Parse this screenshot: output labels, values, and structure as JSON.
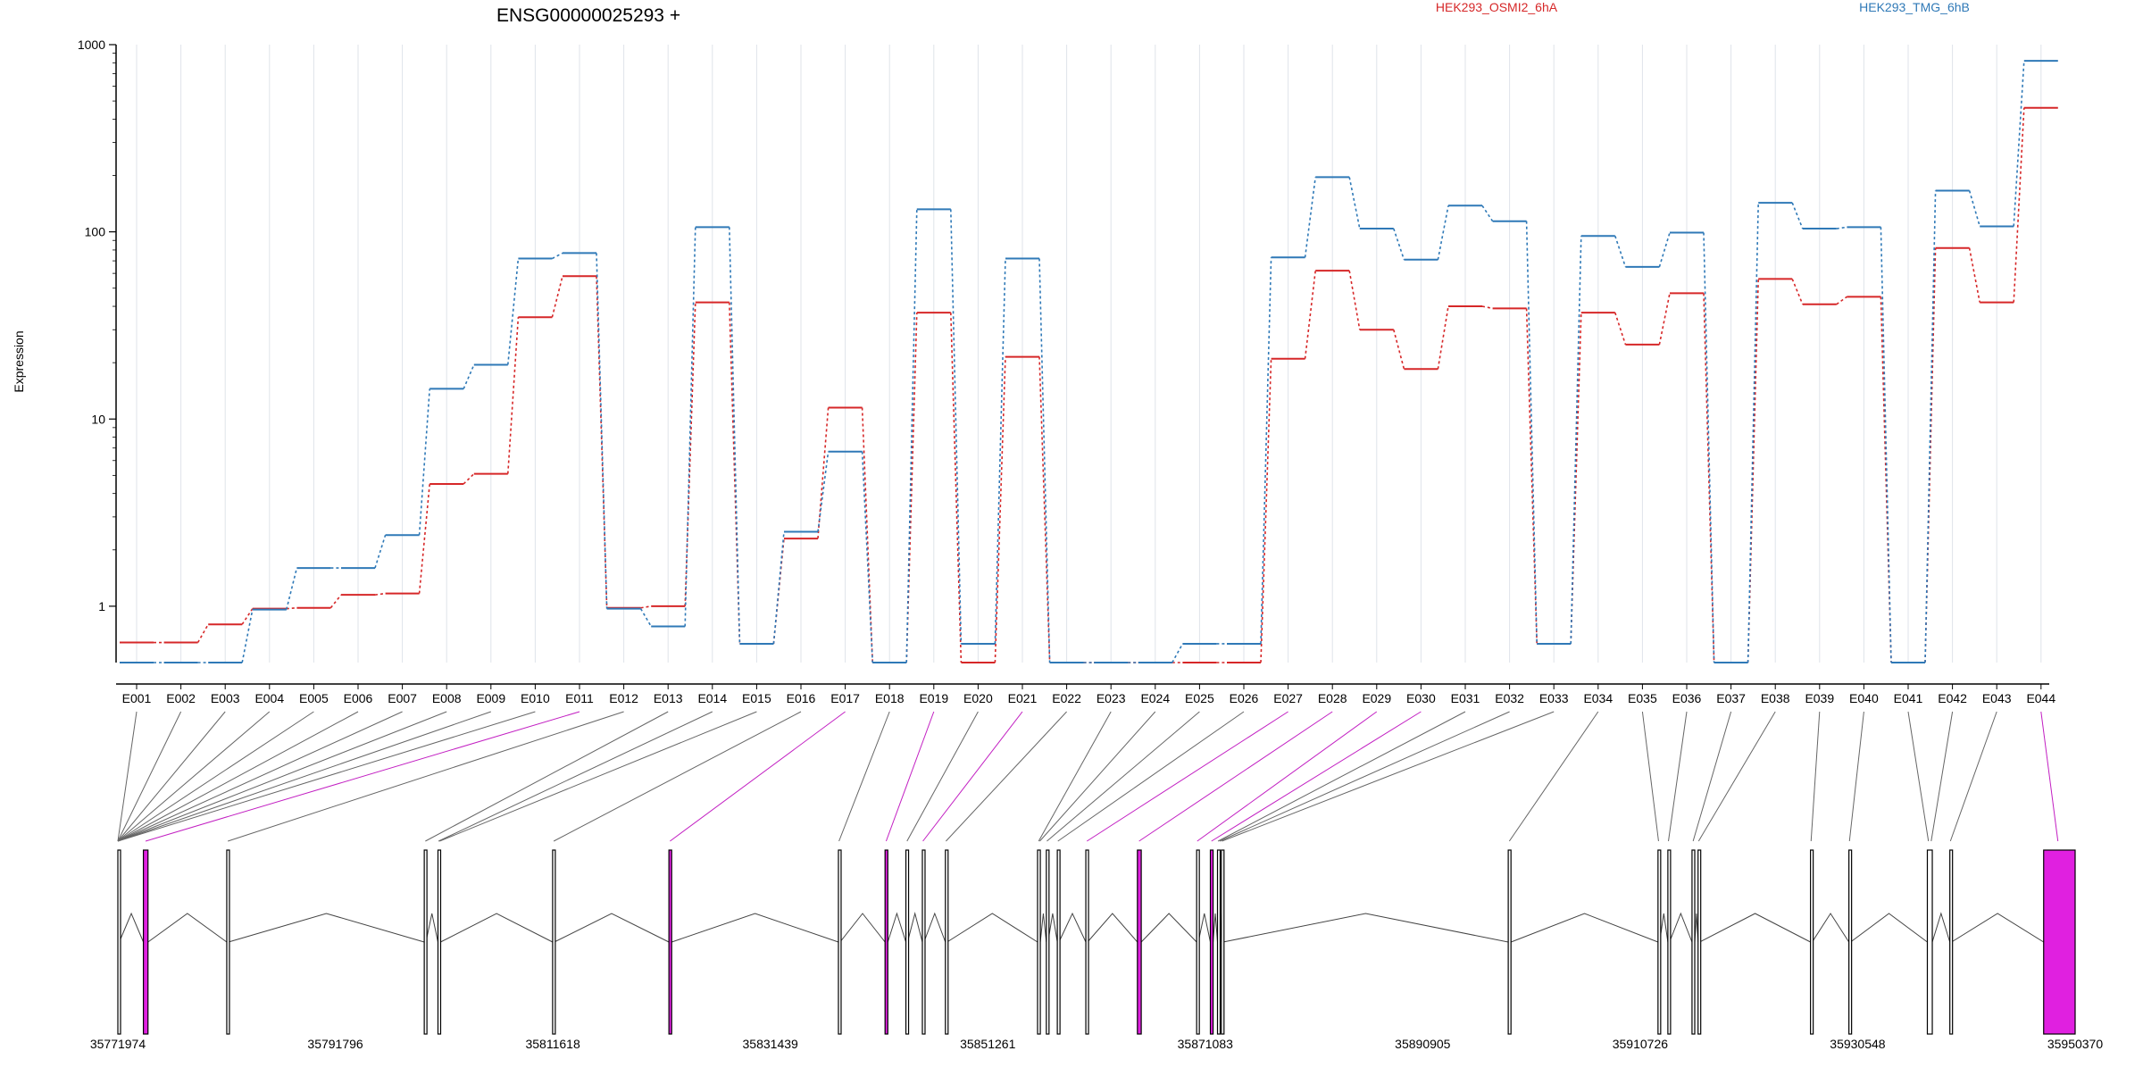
{
  "chart_data": {
    "type": "line",
    "title": "ENSG00000025293 +",
    "ylabel": "Expression",
    "yscale": "log",
    "ylim": [
      0.5,
      1000
    ],
    "yticks": [
      1,
      10,
      100,
      1000
    ],
    "yticklabels": [
      "1",
      "10",
      "100",
      "1000"
    ],
    "grid_x": true,
    "legend_placement": "top",
    "categories": [
      "E001",
      "E002",
      "E003",
      "E004",
      "E005",
      "E006",
      "E007",
      "E008",
      "E009",
      "E010",
      "E011",
      "E012",
      "E013",
      "E014",
      "E015",
      "E016",
      "E017",
      "E018",
      "E019",
      "E020",
      "E021",
      "E022",
      "E023",
      "E024",
      "E025",
      "E026",
      "E027",
      "E028",
      "E029",
      "E030",
      "E031",
      "E032",
      "E033",
      "E034",
      "E035",
      "E036",
      "E037",
      "E038",
      "E039",
      "E040",
      "E041",
      "E042",
      "E043",
      "E044"
    ],
    "series": [
      {
        "name": "HEK293_OSMI2_6hA",
        "color": "#d62728",
        "values": [
          0.64,
          0.64,
          0.8,
          0.97,
          0.98,
          1.15,
          1.17,
          4.5,
          5.1,
          35,
          58,
          0.98,
          1.0,
          42,
          0.63,
          2.3,
          11.5,
          0.5,
          37,
          0.5,
          21.5,
          0.5,
          0.5,
          0.5,
          0.5,
          0.5,
          21,
          62,
          30,
          18.5,
          40,
          39,
          0.63,
          37,
          25,
          47,
          0.5,
          56,
          41,
          45,
          0.5,
          82,
          42,
          460
        ]
      },
      {
        "name": "HEK293_TMG_6hB",
        "color": "#2f79b7",
        "values": [
          0.5,
          0.5,
          0.5,
          0.96,
          1.6,
          1.6,
          2.4,
          14.5,
          19.5,
          72,
          77,
          0.97,
          0.78,
          106,
          0.63,
          2.5,
          6.7,
          0.5,
          132,
          0.63,
          72,
          0.5,
          0.5,
          0.5,
          0.63,
          0.63,
          73,
          196,
          104,
          71,
          138,
          114,
          0.63,
          95,
          65,
          99,
          0.5,
          143,
          104,
          106,
          0.5,
          166,
          107,
          820
        ]
      }
    ],
    "gene_model": {
      "coord_ticks": [
        "35771974",
        "35791796",
        "35811618",
        "35831439",
        "35851261",
        "35871083",
        "35890905",
        "35910726",
        "35930548",
        "35950370"
      ],
      "coord_min": 35771974,
      "coord_max": 35950370,
      "exon_fill": "#ffffff",
      "highlight_color": "#e020e0",
      "exons": [
        {
          "start": 35771974,
          "end": 35772100,
          "highlight": false
        },
        {
          "start": 35774300,
          "end": 35774720,
          "highlight": true
        },
        {
          "start": 35781900,
          "end": 35782050,
          "highlight": false
        },
        {
          "start": 35799900,
          "end": 35800050,
          "highlight": false
        },
        {
          "start": 35801150,
          "end": 35801380,
          "highlight": false
        },
        {
          "start": 35811600,
          "end": 35811750,
          "highlight": false
        },
        {
          "start": 35822200,
          "end": 35822450,
          "highlight": true
        },
        {
          "start": 35837650,
          "end": 35837800,
          "highlight": false
        },
        {
          "start": 35841900,
          "end": 35842150,
          "highlight": true
        },
        {
          "start": 35843800,
          "end": 35843950,
          "highlight": false
        },
        {
          "start": 35845300,
          "end": 35845450,
          "highlight": false
        },
        {
          "start": 35847400,
          "end": 35847550,
          "highlight": false
        },
        {
          "start": 35855800,
          "end": 35856050,
          "highlight": false
        },
        {
          "start": 35856600,
          "end": 35856750,
          "highlight": false
        },
        {
          "start": 35857600,
          "end": 35857750,
          "highlight": false
        },
        {
          "start": 35860200,
          "end": 35860350,
          "highlight": false
        },
        {
          "start": 35864900,
          "end": 35865250,
          "highlight": true
        },
        {
          "start": 35870300,
          "end": 35870450,
          "highlight": false
        },
        {
          "start": 35871550,
          "end": 35871800,
          "highlight": true
        },
        {
          "start": 35872200,
          "end": 35872350,
          "highlight": false
        },
        {
          "start": 35872550,
          "end": 35872700,
          "highlight": false
        },
        {
          "start": 35898700,
          "end": 35898950,
          "highlight": false
        },
        {
          "start": 35912350,
          "end": 35912500,
          "highlight": false
        },
        {
          "start": 35913250,
          "end": 35913400,
          "highlight": false
        },
        {
          "start": 35915450,
          "end": 35915700,
          "highlight": false
        },
        {
          "start": 35916000,
          "end": 35916150,
          "highlight": false
        },
        {
          "start": 35926250,
          "end": 35926400,
          "highlight": false
        },
        {
          "start": 35929750,
          "end": 35929900,
          "highlight": false
        },
        {
          "start": 35936900,
          "end": 35937350,
          "highlight": false
        },
        {
          "start": 35938950,
          "end": 35939100,
          "highlight": false
        },
        {
          "start": 35947500,
          "end": 35950370,
          "highlight": true
        }
      ],
      "bin_connectors": [
        {
          "exon": "E001",
          "coord": 35771974,
          "highlight": false
        },
        {
          "exon": "E002",
          "coord": 35771974,
          "highlight": false
        },
        {
          "exon": "E003",
          "coord": 35771974,
          "highlight": false
        },
        {
          "exon": "E004",
          "coord": 35771974,
          "highlight": false
        },
        {
          "exon": "E005",
          "coord": 35771974,
          "highlight": false
        },
        {
          "exon": "E006",
          "coord": 35771974,
          "highlight": false
        },
        {
          "exon": "E007",
          "coord": 35771974,
          "highlight": false
        },
        {
          "exon": "E008",
          "coord": 35771974,
          "highlight": false
        },
        {
          "exon": "E009",
          "coord": 35771974,
          "highlight": false
        },
        {
          "exon": "E010",
          "coord": 35771974,
          "highlight": false
        },
        {
          "exon": "E011",
          "coord": 35774500,
          "highlight": true
        },
        {
          "exon": "E012",
          "coord": 35782000,
          "highlight": false
        },
        {
          "exon": "E013",
          "coord": 35800000,
          "highlight": false
        },
        {
          "exon": "E014",
          "coord": 35801200,
          "highlight": false
        },
        {
          "exon": "E015",
          "coord": 35801300,
          "highlight": false
        },
        {
          "exon": "E016",
          "coord": 35811700,
          "highlight": false
        },
        {
          "exon": "E017",
          "coord": 35822300,
          "highlight": true
        },
        {
          "exon": "E018",
          "coord": 35837700,
          "highlight": false
        },
        {
          "exon": "E019",
          "coord": 35842000,
          "highlight": true
        },
        {
          "exon": "E020",
          "coord": 35843900,
          "highlight": false
        },
        {
          "exon": "E021",
          "coord": 35845350,
          "highlight": true
        },
        {
          "exon": "E022",
          "coord": 35847450,
          "highlight": false
        },
        {
          "exon": "E023",
          "coord": 35855900,
          "highlight": false
        },
        {
          "exon": "E024",
          "coord": 35856000,
          "highlight": false
        },
        {
          "exon": "E025",
          "coord": 35856650,
          "highlight": false
        },
        {
          "exon": "E026",
          "coord": 35857650,
          "highlight": false
        },
        {
          "exon": "E027",
          "coord": 35860300,
          "highlight": true
        },
        {
          "exon": "E028",
          "coord": 35865050,
          "highlight": true
        },
        {
          "exon": "E029",
          "coord": 35870350,
          "highlight": true
        },
        {
          "exon": "E030",
          "coord": 35871650,
          "highlight": true
        },
        {
          "exon": "E031",
          "coord": 35872250,
          "highlight": false
        },
        {
          "exon": "E032",
          "coord": 35872400,
          "highlight": false
        },
        {
          "exon": "E033",
          "coord": 35872600,
          "highlight": false
        },
        {
          "exon": "E034",
          "coord": 35898800,
          "highlight": false
        },
        {
          "exon": "E035",
          "coord": 35912400,
          "highlight": false
        },
        {
          "exon": "E036",
          "coord": 35913300,
          "highlight": false
        },
        {
          "exon": "E037",
          "coord": 35915550,
          "highlight": false
        },
        {
          "exon": "E038",
          "coord": 35916050,
          "highlight": false
        },
        {
          "exon": "E039",
          "coord": 35926300,
          "highlight": false
        },
        {
          "exon": "E040",
          "coord": 35929800,
          "highlight": false
        },
        {
          "exon": "E041",
          "coord": 35937000,
          "highlight": false
        },
        {
          "exon": "E042",
          "coord": 35937250,
          "highlight": false
        },
        {
          "exon": "E043",
          "coord": 35939000,
          "highlight": false
        },
        {
          "exon": "E044",
          "coord": 35948800,
          "highlight": true
        }
      ]
    }
  }
}
